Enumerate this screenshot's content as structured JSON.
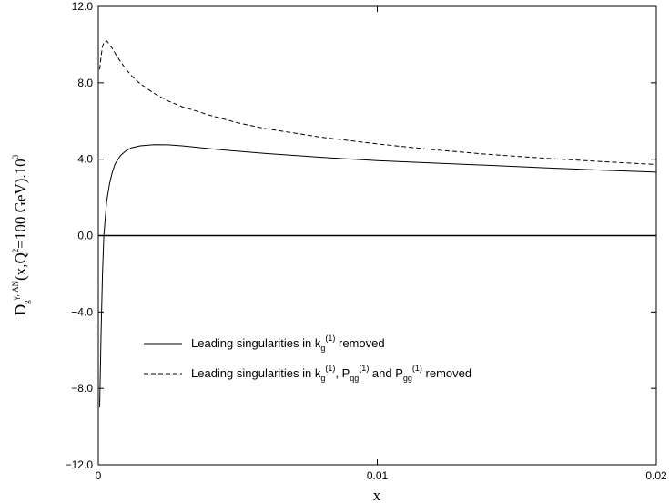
{
  "chart_data": {
    "type": "line",
    "xlabel": "x",
    "ylabel": {
      "base": "D",
      "sub": "g",
      "sup": "γ, AN",
      "args_1": "(x,Q",
      "args_sup": "2",
      "args_2": "=100 GeV).10",
      "power": "3"
    },
    "xlim": [
      0,
      0.02
    ],
    "ylim": [
      -12.0,
      12.0
    ],
    "x_ticks": [
      0,
      0.01,
      0.02
    ],
    "x_tick_labels": [
      "0",
      "0.01",
      "0.02"
    ],
    "y_ticks": [
      -12,
      -8,
      -4,
      0,
      4,
      8,
      12
    ],
    "y_tick_labels": [
      "−12.0",
      "−8.0",
      "−4.0",
      "0.0",
      "4.0",
      "8.0",
      "12.0"
    ],
    "grid": false,
    "legend_position": "lower-left",
    "zero_line": true,
    "series": [
      {
        "name_parts": [
          "Leading singularities in k",
          "g",
          "(1)",
          " removed"
        ],
        "style": "solid",
        "x": [
          5e-05,
          0.0001,
          0.00015,
          0.0002,
          0.0003,
          0.0004,
          0.0005,
          0.0006,
          0.0008,
          0.001,
          0.0012,
          0.0015,
          0.002,
          0.0025,
          0.003,
          0.004,
          0.005,
          0.006,
          0.008,
          0.01,
          0.012,
          0.014,
          0.016,
          0.018,
          0.02
        ],
        "y": [
          -9.0,
          -5.0,
          -2.0,
          0.0,
          1.8,
          2.7,
          3.3,
          3.75,
          4.2,
          4.45,
          4.6,
          4.7,
          4.76,
          4.75,
          4.7,
          4.55,
          4.42,
          4.3,
          4.1,
          3.92,
          3.8,
          3.68,
          3.55,
          3.43,
          3.32
        ]
      },
      {
        "name_parts": [
          "Leading singularities in k",
          "g",
          "(1)",
          ", P",
          "qg",
          "(1)",
          " and P",
          "gg",
          "(1)",
          " removed"
        ],
        "style": "dashed",
        "x": [
          5e-05,
          0.0001,
          0.00015,
          0.0002,
          0.0003,
          0.0004,
          0.0005,
          0.0006,
          0.0008,
          0.001,
          0.0012,
          0.0015,
          0.002,
          0.0025,
          0.003,
          0.004,
          0.005,
          0.006,
          0.008,
          0.01,
          0.012,
          0.014,
          0.016,
          0.018,
          0.02
        ],
        "y": [
          8.7,
          9.4,
          9.9,
          10.1,
          10.2,
          10.0,
          9.8,
          9.55,
          9.1,
          8.7,
          8.35,
          7.95,
          7.45,
          7.05,
          6.75,
          6.3,
          5.9,
          5.6,
          5.15,
          4.8,
          4.5,
          4.25,
          4.05,
          3.88,
          3.72
        ]
      }
    ]
  }
}
